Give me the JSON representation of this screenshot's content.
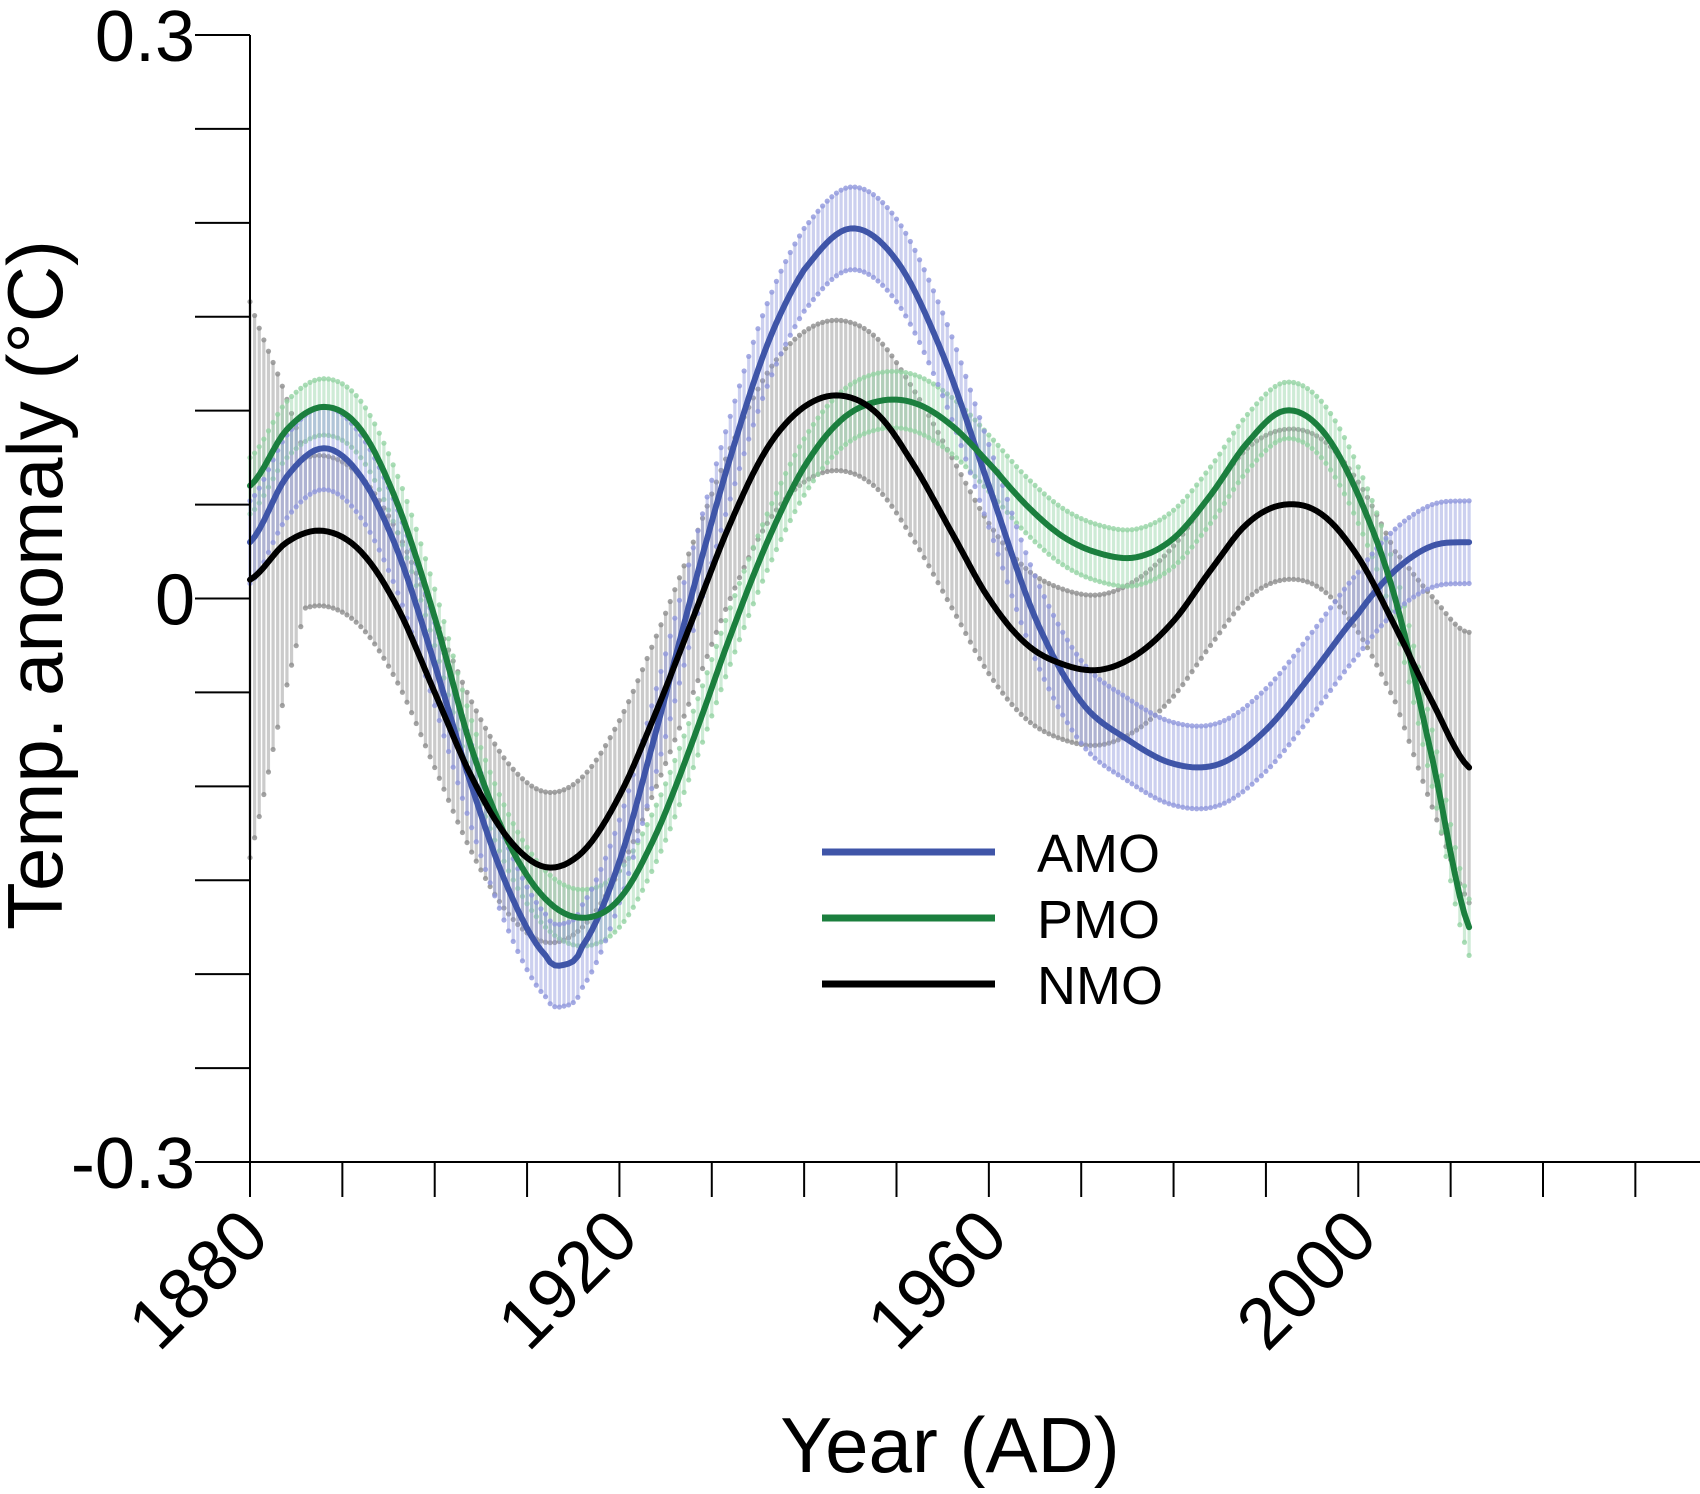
{
  "chart_data": {
    "type": "line",
    "xlabel": "Year (AD)",
    "ylabel": "Temp. anomaly (°C)",
    "xlim": [
      1880,
      2015
    ],
    "ylim": [
      -0.3,
      0.3
    ],
    "x_ticks": [
      1880,
      1920,
      1960,
      2000
    ],
    "y_ticks": [
      "0.3",
      "0",
      "-0.3"
    ],
    "y_tick_values": [
      0.3,
      0,
      -0.3
    ],
    "x_minor_step": 10,
    "y_minor_step": 0.05,
    "grid": false,
    "legend_position": "lower-center",
    "series": [
      {
        "name": "AMO",
        "color": "#3f55a8",
        "band_color": "#8f96dc",
        "points": [
          [
            1880,
            0.03
          ],
          [
            1884,
            0.065
          ],
          [
            1888,
            0.08
          ],
          [
            1892,
            0.065
          ],
          [
            1896,
            0.025
          ],
          [
            1900,
            -0.035
          ],
          [
            1904,
            -0.1
          ],
          [
            1908,
            -0.155
          ],
          [
            1912,
            -0.19
          ],
          [
            1914,
            -0.195
          ],
          [
            1916,
            -0.185
          ],
          [
            1920,
            -0.14
          ],
          [
            1924,
            -0.07
          ],
          [
            1928,
            0.005
          ],
          [
            1932,
            0.075
          ],
          [
            1936,
            0.135
          ],
          [
            1940,
            0.175
          ],
          [
            1945,
            0.197
          ],
          [
            1950,
            0.18
          ],
          [
            1955,
            0.13
          ],
          [
            1960,
            0.06
          ],
          [
            1965,
            -0.01
          ],
          [
            1970,
            -0.055
          ],
          [
            1975,
            -0.075
          ],
          [
            1980,
            -0.088
          ],
          [
            1985,
            -0.088
          ],
          [
            1990,
            -0.07
          ],
          [
            1995,
            -0.04
          ],
          [
            2000,
            -0.008
          ],
          [
            2004,
            0.015
          ],
          [
            2008,
            0.028
          ],
          [
            2012,
            0.03
          ]
        ],
        "uncertainty": 0.022
      },
      {
        "name": "PMO",
        "color": "#1b7f3e",
        "band_color": "#93d3a3",
        "points": [
          [
            1880,
            0.06
          ],
          [
            1884,
            0.09
          ],
          [
            1888,
            0.102
          ],
          [
            1892,
            0.09
          ],
          [
            1896,
            0.05
          ],
          [
            1900,
            -0.01
          ],
          [
            1904,
            -0.08
          ],
          [
            1908,
            -0.13
          ],
          [
            1912,
            -0.16
          ],
          [
            1916,
            -0.17
          ],
          [
            1920,
            -0.16
          ],
          [
            1924,
            -0.125
          ],
          [
            1928,
            -0.075
          ],
          [
            1932,
            -0.02
          ],
          [
            1936,
            0.03
          ],
          [
            1940,
            0.07
          ],
          [
            1944,
            0.095
          ],
          [
            1948,
            0.105
          ],
          [
            1952,
            0.104
          ],
          [
            1956,
            0.092
          ],
          [
            1960,
            0.072
          ],
          [
            1964,
            0.05
          ],
          [
            1968,
            0.033
          ],
          [
            1972,
            0.024
          ],
          [
            1976,
            0.022
          ],
          [
            1980,
            0.032
          ],
          [
            1984,
            0.055
          ],
          [
            1988,
            0.083
          ],
          [
            1992,
            0.1
          ],
          [
            1996,
            0.09
          ],
          [
            2000,
            0.055
          ],
          [
            2004,
            0.0
          ],
          [
            2008,
            -0.085
          ],
          [
            2012,
            -0.175
          ]
        ],
        "uncertainty": 0.015
      },
      {
        "name": "NMO",
        "color": "#000000",
        "band_color": "#8c8c8c",
        "points": [
          [
            1880,
            0.01
          ],
          [
            1884,
            0.03
          ],
          [
            1888,
            0.036
          ],
          [
            1892,
            0.025
          ],
          [
            1896,
            -0.005
          ],
          [
            1900,
            -0.05
          ],
          [
            1904,
            -0.095
          ],
          [
            1908,
            -0.128
          ],
          [
            1912,
            -0.143
          ],
          [
            1916,
            -0.135
          ],
          [
            1920,
            -0.105
          ],
          [
            1924,
            -0.06
          ],
          [
            1928,
            -0.01
          ],
          [
            1932,
            0.04
          ],
          [
            1936,
            0.08
          ],
          [
            1940,
            0.102
          ],
          [
            1944,
            0.108
          ],
          [
            1948,
            0.098
          ],
          [
            1952,
            0.07
          ],
          [
            1956,
            0.035
          ],
          [
            1960,
            0.0
          ],
          [
            1964,
            -0.024
          ],
          [
            1968,
            -0.035
          ],
          [
            1972,
            -0.038
          ],
          [
            1976,
            -0.03
          ],
          [
            1980,
            -0.012
          ],
          [
            1984,
            0.015
          ],
          [
            1988,
            0.04
          ],
          [
            1992,
            0.05
          ],
          [
            1996,
            0.045
          ],
          [
            2000,
            0.022
          ],
          [
            2004,
            -0.015
          ],
          [
            2008,
            -0.055
          ],
          [
            2012,
            -0.09
          ]
        ],
        "uncertainty": 0.04
      }
    ]
  }
}
